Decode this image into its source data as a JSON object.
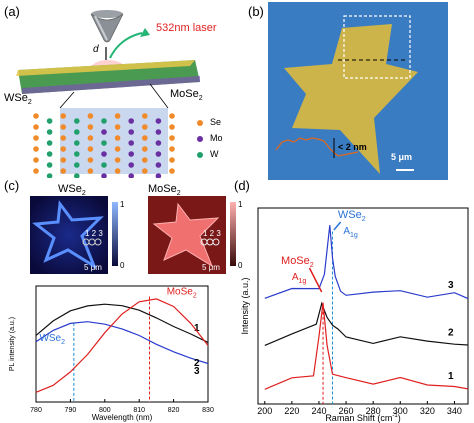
{
  "panels": {
    "a": "(a)",
    "b": "(b)",
    "c": "(c)",
    "d": "(d)"
  },
  "panel_a": {
    "laser": "532nm laser",
    "distance": "d",
    "left_material": "WSe",
    "left_sub": "2",
    "right_material": "MoSe",
    "right_sub": "2",
    "legend": [
      "Se",
      "Mo",
      "W"
    ],
    "colors": {
      "Se": "#f08a2a",
      "Mo": "#6a2fa0",
      "W": "#22a06b",
      "region": "#c9d8ee"
    }
  },
  "panel_b": {
    "height_label": "< 2 nm",
    "scale_label": "5 μm",
    "colors": {
      "background": "#3a7cc2",
      "flake": "#cdb44a",
      "profile": "#e2671c"
    }
  },
  "panel_c": {
    "map_left_title": "WSe",
    "map_left_sub": "2",
    "map_right_title": "MoSe",
    "map_right_sub": "2",
    "map_points": "1 2 3",
    "map_left_scale": "5 μm",
    "map_right_scale": "5 μm",
    "colorbar_ticks": [
      "1",
      "0"
    ],
    "chart_data": {
      "type": "line",
      "xlabel": "Wavelength (nm)",
      "ylabel": "PL intensity (a.u.)",
      "xlim": [
        780,
        830
      ],
      "xticks": [
        780,
        790,
        800,
        810,
        820,
        830
      ],
      "series": [
        {
          "name": "1",
          "color": "#111111",
          "x": [
            780,
            785,
            790,
            795,
            800,
            805,
            810,
            815,
            820,
            825,
            830
          ],
          "y": [
            0.62,
            0.76,
            0.86,
            0.91,
            0.93,
            0.92,
            0.88,
            0.81,
            0.73,
            0.66,
            0.58
          ]
        },
        {
          "name": "2",
          "color": "#2a3ccc",
          "x": [
            780,
            785,
            790,
            795,
            800,
            805,
            810,
            815,
            820,
            825,
            830
          ],
          "y": [
            0.56,
            0.67,
            0.74,
            0.76,
            0.74,
            0.7,
            0.64,
            0.56,
            0.49,
            0.43,
            0.38
          ]
        },
        {
          "name": "3",
          "color": "#e02020",
          "x": [
            780,
            785,
            790,
            795,
            800,
            805,
            810,
            815,
            820,
            825,
            830
          ],
          "y": [
            0.08,
            0.15,
            0.28,
            0.45,
            0.66,
            0.84,
            0.96,
            0.99,
            0.92,
            0.76,
            0.55
          ]
        }
      ],
      "annotations": [
        {
          "text": "MoSe",
          "sub": "2",
          "color": "#e02020"
        },
        {
          "text": "WSe",
          "sub": "2",
          "color": "#2a73d6"
        }
      ],
      "markers": [
        {
          "x": 791,
          "color": "#1a8fd6"
        },
        {
          "x": 813,
          "color": "#e02020"
        }
      ]
    }
  },
  "panel_d": {
    "chart_data": {
      "type": "line",
      "xlabel": "Raman Shift (cm",
      "xlabel_sup": "-1",
      "xlabel_end": ")",
      "ylabel": "Intensity (a.u.)",
      "xlim": [
        195,
        350
      ],
      "xticks": [
        200,
        220,
        240,
        260,
        280,
        300,
        320,
        340
      ],
      "series": [
        {
          "name": "3",
          "color": "#2a3ccc",
          "x": [
            200,
            220,
            240,
            244,
            248,
            250,
            252,
            256,
            260,
            280,
            300,
            320,
            340,
            350
          ],
          "y": [
            0.7,
            0.71,
            0.74,
            0.8,
            1.12,
            0.95,
            0.8,
            0.74,
            0.72,
            0.71,
            0.7,
            0.71,
            0.7,
            0.7
          ]
        },
        {
          "name": "2",
          "color": "#111111",
          "x": [
            200,
            220,
            238,
            242,
            246,
            250,
            254,
            260,
            280,
            300,
            320,
            340,
            350
          ],
          "y": [
            0.4,
            0.42,
            0.48,
            0.64,
            0.58,
            0.52,
            0.46,
            0.43,
            0.41,
            0.4,
            0.41,
            0.4,
            0.4
          ]
        },
        {
          "name": "1",
          "color": "#e02020",
          "x": [
            200,
            220,
            236,
            240,
            243,
            246,
            250,
            260,
            280,
            300,
            320,
            340,
            350
          ],
          "y": [
            0.12,
            0.14,
            0.2,
            0.46,
            0.62,
            0.38,
            0.22,
            0.17,
            0.15,
            0.14,
            0.13,
            0.13,
            0.12
          ]
        }
      ],
      "annotations": [
        {
          "text": "WSe",
          "sub": "2",
          "mode": "A",
          "mode_sub": "1g",
          "color": "#2a73d6"
        },
        {
          "text": "MoSe",
          "sub": "2",
          "mode": "A",
          "mode_sub": "1g",
          "color": "#e02020"
        }
      ],
      "markers": [
        {
          "x": 243,
          "color": "#e02020"
        },
        {
          "x": 250,
          "color": "#1a8fd6"
        }
      ]
    }
  }
}
